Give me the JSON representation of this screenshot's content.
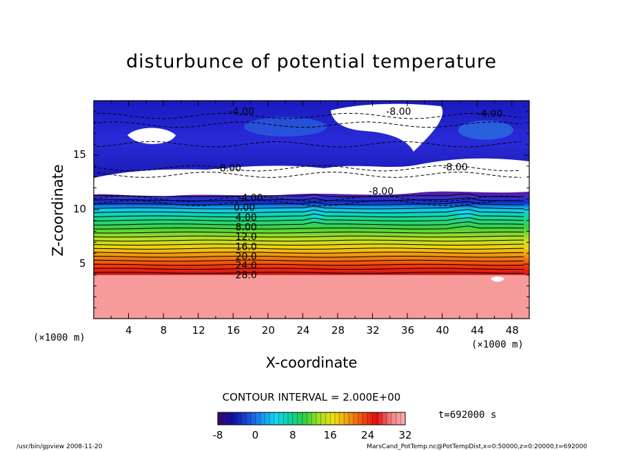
{
  "chart_data": {
    "type": "heatmap",
    "title": "disturbunce of potential temperature",
    "xlabel": "X-coordinate",
    "ylabel": "Z-coordinate",
    "x_unit": "(×1000 m)",
    "y_unit": "(×1000 m)",
    "x_ticks": [
      4,
      8,
      12,
      16,
      20,
      24,
      28,
      32,
      36,
      40,
      44,
      48
    ],
    "y_ticks": [
      5,
      10,
      15
    ],
    "xlim": [
      0,
      50
    ],
    "ylim": [
      0,
      20
    ],
    "contour_interval_label": "CONTOUR INTERVAL = 2.000E+00",
    "time_label": "t=692000 s",
    "colorbar": {
      "min": -8,
      "max": 32,
      "ticks": [
        -8,
        0,
        8,
        16,
        24,
        32
      ],
      "colors": [
        "#3a0a6a",
        "#1010a0",
        "#1848d8",
        "#1890f0",
        "#10d8f0",
        "#10d0a0",
        "#30d040",
        "#a0e020",
        "#f0e010",
        "#f0a010",
        "#f05010",
        "#e01010",
        "#f08080",
        "#ffb0b0"
      ]
    },
    "contour_labels": [
      {
        "text": "-4.00",
        "x": 17,
        "z": 18.7
      },
      {
        "text": "-8.00",
        "x": 35,
        "z": 18.7
      },
      {
        "text": "-4.00",
        "x": 45.5,
        "z": 18.5
      },
      {
        "text": "-8.00",
        "x": 15.5,
        "z": 13.5
      },
      {
        "text": "-8.00",
        "x": 41.5,
        "z": 13.6
      },
      {
        "text": "-8.00",
        "x": 33,
        "z": 11.4
      },
      {
        "text": "-4.00",
        "x": 18,
        "z": 10.8
      },
      {
        "text": "0.00",
        "x": 17.3,
        "z": 9.9
      },
      {
        "text": "4.00",
        "x": 17.5,
        "z": 9.0
      },
      {
        "text": "8.00",
        "x": 17.5,
        "z": 8.1
      },
      {
        "text": "12.0",
        "x": 17.5,
        "z": 7.2
      },
      {
        "text": "16.0",
        "x": 17.5,
        "z": 6.3
      },
      {
        "text": "20.0",
        "x": 17.5,
        "z": 5.4
      },
      {
        "text": "24.0",
        "x": 17.5,
        "z": 4.6
      },
      {
        "text": "28.0",
        "x": 17.5,
        "z": 3.7
      }
    ]
  },
  "footer": {
    "left": "/usr/bin/gpview   2008-11-20",
    "right": "MarsCand_PotTemp.nc@PotTempDist,x=0:50000,z=0:20000,t=692000"
  }
}
